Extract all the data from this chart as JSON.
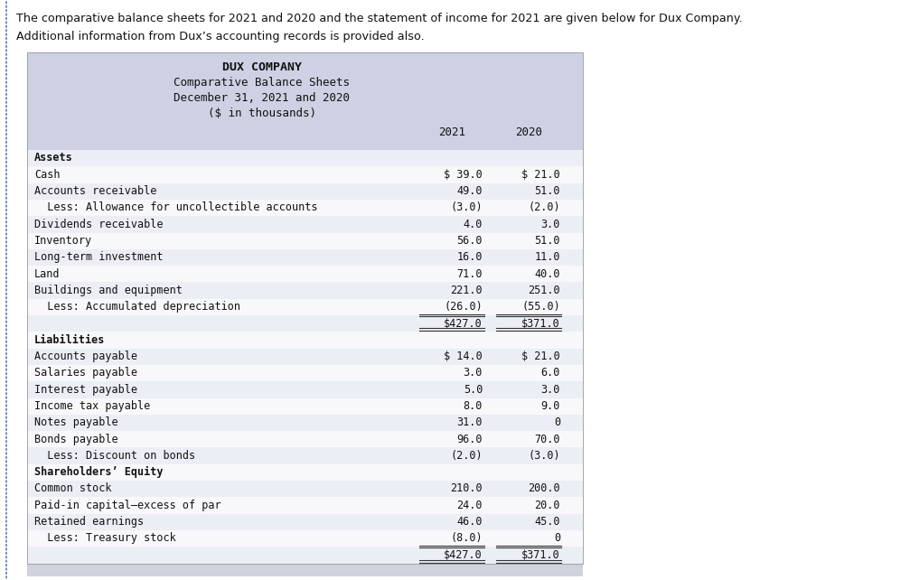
{
  "intro_text_line1": "The comparative balance sheets for 2021 and 2020 and the statement of income for 2021 are given below for Dux Company.",
  "intro_text_line2": "Additional information from Dux’s accounting records is provided also.",
  "company_name": "DUX COMPANY",
  "subtitle1": "Comparative Balance Sheets",
  "subtitle2": "December 31, 2021 and 2020",
  "subtitle3": "($ in thousands)",
  "col_header_2021": "2021",
  "col_header_2020": "2020",
  "header_bg": "#cdd1e3",
  "row_alt1": "#eceef5",
  "row_alt2": "#f8f8fb",
  "fig_bg": "#ffffff",
  "bottom_bar_bg": "#d0d2de",
  "rows": [
    {
      "label": "Assets",
      "val2021": "",
      "val2020": "",
      "bold": true,
      "section_header": true,
      "underline": false,
      "total": false
    },
    {
      "label": "Cash",
      "val2021": "$ 39.0",
      "val2020": "$ 21.0",
      "bold": false,
      "section_header": false,
      "underline": false,
      "total": false
    },
    {
      "label": "Accounts receivable",
      "val2021": "49.0",
      "val2020": "51.0",
      "bold": false,
      "section_header": false,
      "underline": false,
      "total": false
    },
    {
      "label": "  Less: Allowance for uncollectible accounts",
      "val2021": "(3.0)",
      "val2020": "(2.0)",
      "bold": false,
      "section_header": false,
      "underline": false,
      "total": false
    },
    {
      "label": "Dividends receivable",
      "val2021": "4.0",
      "val2020": "3.0",
      "bold": false,
      "section_header": false,
      "underline": false,
      "total": false
    },
    {
      "label": "Inventory",
      "val2021": "56.0",
      "val2020": "51.0",
      "bold": false,
      "section_header": false,
      "underline": false,
      "total": false
    },
    {
      "label": "Long-term investment",
      "val2021": "16.0",
      "val2020": "11.0",
      "bold": false,
      "section_header": false,
      "underline": false,
      "total": false
    },
    {
      "label": "Land",
      "val2021": "71.0",
      "val2020": "40.0",
      "bold": false,
      "section_header": false,
      "underline": false,
      "total": false
    },
    {
      "label": "Buildings and equipment",
      "val2021": "221.0",
      "val2020": "251.0",
      "bold": false,
      "section_header": false,
      "underline": false,
      "total": false
    },
    {
      "label": "  Less: Accumulated depreciation",
      "val2021": "(26.0)",
      "val2020": "(55.0)",
      "bold": false,
      "section_header": false,
      "underline": true,
      "total": false
    },
    {
      "label": "",
      "val2021": "$427.0",
      "val2020": "$371.0",
      "bold": false,
      "section_header": false,
      "underline": false,
      "total": true
    },
    {
      "label": "Liabilities",
      "val2021": "",
      "val2020": "",
      "bold": true,
      "section_header": true,
      "underline": false,
      "total": false
    },
    {
      "label": "Accounts payable",
      "val2021": "$ 14.0",
      "val2020": "$ 21.0",
      "bold": false,
      "section_header": false,
      "underline": false,
      "total": false
    },
    {
      "label": "Salaries payable",
      "val2021": "3.0",
      "val2020": "6.0",
      "bold": false,
      "section_header": false,
      "underline": false,
      "total": false
    },
    {
      "label": "Interest payable",
      "val2021": "5.0",
      "val2020": "3.0",
      "bold": false,
      "section_header": false,
      "underline": false,
      "total": false
    },
    {
      "label": "Income tax payable",
      "val2021": "8.0",
      "val2020": "9.0",
      "bold": false,
      "section_header": false,
      "underline": false,
      "total": false
    },
    {
      "label": "Notes payable",
      "val2021": "31.0",
      "val2020": "0",
      "bold": false,
      "section_header": false,
      "underline": false,
      "total": false
    },
    {
      "label": "Bonds payable",
      "val2021": "96.0",
      "val2020": "70.0",
      "bold": false,
      "section_header": false,
      "underline": false,
      "total": false
    },
    {
      "label": "  Less: Discount on bonds",
      "val2021": "(2.0)",
      "val2020": "(3.0)",
      "bold": false,
      "section_header": false,
      "underline": false,
      "total": false
    },
    {
      "label": "Shareholders’ Equity",
      "val2021": "",
      "val2020": "",
      "bold": true,
      "section_header": true,
      "underline": false,
      "total": false
    },
    {
      "label": "Common stock",
      "val2021": "210.0",
      "val2020": "200.0",
      "bold": false,
      "section_header": false,
      "underline": false,
      "total": false
    },
    {
      "label": "Paid-in capital–excess of par",
      "val2021": "24.0",
      "val2020": "20.0",
      "bold": false,
      "section_header": false,
      "underline": false,
      "total": false
    },
    {
      "label": "Retained earnings",
      "val2021": "46.0",
      "val2020": "45.0",
      "bold": false,
      "section_header": false,
      "underline": false,
      "total": false
    },
    {
      "label": "  Less: Treasury stock",
      "val2021": "(8.0)",
      "val2020": "0",
      "bold": false,
      "section_header": false,
      "underline": true,
      "total": false
    },
    {
      "label": "",
      "val2021": "$427.0",
      "val2020": "$371.0",
      "bold": false,
      "section_header": false,
      "underline": false,
      "total": true
    }
  ],
  "font_size": 8.5,
  "mono_font": "DejaVu Sans Mono",
  "sans_font": "DejaVu Sans"
}
